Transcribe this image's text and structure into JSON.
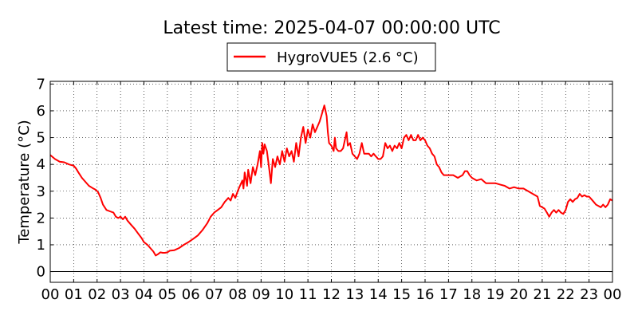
{
  "chart_data": {
    "type": "line",
    "title": "Latest time: 2025-04-07 00:00:00 UTC",
    "xlabel": "",
    "ylabel": "Temperature (°C)",
    "xlim": [
      0,
      24
    ],
    "ylim": [
      -0.4,
      7.1
    ],
    "x_ticks": [
      0,
      1,
      2,
      3,
      4,
      5,
      6,
      7,
      8,
      9,
      10,
      11,
      12,
      13,
      14,
      15,
      16,
      17,
      18,
      19,
      20,
      21,
      22,
      23,
      24
    ],
    "x_tick_labels": [
      "00",
      "01",
      "02",
      "03",
      "04",
      "05",
      "06",
      "07",
      "08",
      "09",
      "10",
      "11",
      "12",
      "13",
      "14",
      "15",
      "16",
      "17",
      "18",
      "19",
      "20",
      "21",
      "22",
      "23",
      "00"
    ],
    "y_ticks": [
      0,
      1,
      2,
      3,
      4,
      5,
      6,
      7
    ],
    "y_tick_labels": [
      "0",
      "1",
      "2",
      "3",
      "4",
      "5",
      "6",
      "7"
    ],
    "grid": true,
    "legend_position": "top-center",
    "series": [
      {
        "name": "HygroVUE5 (2.6 °C)",
        "color": "#ff0000",
        "points": [
          [
            0.0,
            4.35
          ],
          [
            0.2,
            4.2
          ],
          [
            0.4,
            4.1
          ],
          [
            0.6,
            4.08
          ],
          [
            0.8,
            4.0
          ],
          [
            1.0,
            3.95
          ],
          [
            1.1,
            3.85
          ],
          [
            1.2,
            3.7
          ],
          [
            1.35,
            3.5
          ],
          [
            1.5,
            3.35
          ],
          [
            1.65,
            3.2
          ],
          [
            1.8,
            3.12
          ],
          [
            1.95,
            3.05
          ],
          [
            2.05,
            2.95
          ],
          [
            2.15,
            2.75
          ],
          [
            2.25,
            2.5
          ],
          [
            2.4,
            2.3
          ],
          [
            2.55,
            2.25
          ],
          [
            2.7,
            2.2
          ],
          [
            2.8,
            2.05
          ],
          [
            2.9,
            2.0
          ],
          [
            3.0,
            2.05
          ],
          [
            3.1,
            1.95
          ],
          [
            3.2,
            2.05
          ],
          [
            3.3,
            1.9
          ],
          [
            3.45,
            1.75
          ],
          [
            3.6,
            1.6
          ],
          [
            3.75,
            1.42
          ],
          [
            3.9,
            1.25
          ],
          [
            4.0,
            1.1
          ],
          [
            4.15,
            1.0
          ],
          [
            4.3,
            0.85
          ],
          [
            4.4,
            0.75
          ],
          [
            4.5,
            0.6
          ],
          [
            4.6,
            0.65
          ],
          [
            4.7,
            0.72
          ],
          [
            4.8,
            0.7
          ],
          [
            4.9,
            0.7
          ],
          [
            5.0,
            0.72
          ],
          [
            5.1,
            0.78
          ],
          [
            5.3,
            0.8
          ],
          [
            5.5,
            0.88
          ],
          [
            5.7,
            1.0
          ],
          [
            5.9,
            1.1
          ],
          [
            6.1,
            1.22
          ],
          [
            6.3,
            1.35
          ],
          [
            6.5,
            1.55
          ],
          [
            6.7,
            1.8
          ],
          [
            6.85,
            2.05
          ],
          [
            7.0,
            2.2
          ],
          [
            7.15,
            2.3
          ],
          [
            7.3,
            2.4
          ],
          [
            7.45,
            2.6
          ],
          [
            7.6,
            2.75
          ],
          [
            7.7,
            2.65
          ],
          [
            7.8,
            2.9
          ],
          [
            7.9,
            2.75
          ],
          [
            8.0,
            3.0
          ],
          [
            8.1,
            3.2
          ],
          [
            8.2,
            3.4
          ],
          [
            8.25,
            3.1
          ],
          [
            8.3,
            3.7
          ],
          [
            8.4,
            3.2
          ],
          [
            8.45,
            3.8
          ],
          [
            8.55,
            3.3
          ],
          [
            8.65,
            3.9
          ],
          [
            8.75,
            3.6
          ],
          [
            8.85,
            4.0
          ],
          [
            8.95,
            4.5
          ],
          [
            9.0,
            3.9
          ],
          [
            9.05,
            4.8
          ],
          [
            9.1,
            4.4
          ],
          [
            9.15,
            4.75
          ],
          [
            9.25,
            4.5
          ],
          [
            9.35,
            3.8
          ],
          [
            9.42,
            3.3
          ],
          [
            9.5,
            4.2
          ],
          [
            9.6,
            3.9
          ],
          [
            9.7,
            4.3
          ],
          [
            9.8,
            4.0
          ],
          [
            9.9,
            4.5
          ],
          [
            10.0,
            4.1
          ],
          [
            10.1,
            4.6
          ],
          [
            10.2,
            4.3
          ],
          [
            10.3,
            4.5
          ],
          [
            10.4,
            4.1
          ],
          [
            10.5,
            4.8
          ],
          [
            10.6,
            4.3
          ],
          [
            10.7,
            5.0
          ],
          [
            10.8,
            5.4
          ],
          [
            10.9,
            4.8
          ],
          [
            11.0,
            5.3
          ],
          [
            11.1,
            5.0
          ],
          [
            11.2,
            5.5
          ],
          [
            11.3,
            5.2
          ],
          [
            11.4,
            5.4
          ],
          [
            11.5,
            5.6
          ],
          [
            11.6,
            5.9
          ],
          [
            11.7,
            6.2
          ],
          [
            11.75,
            6.0
          ],
          [
            11.8,
            5.8
          ],
          [
            11.85,
            5.2
          ],
          [
            11.9,
            4.8
          ],
          [
            12.0,
            4.7
          ],
          [
            12.1,
            4.5
          ],
          [
            12.15,
            5.0
          ],
          [
            12.2,
            4.6
          ],
          [
            12.3,
            4.5
          ],
          [
            12.4,
            4.5
          ],
          [
            12.5,
            4.6
          ],
          [
            12.6,
            5.0
          ],
          [
            12.65,
            5.2
          ],
          [
            12.7,
            4.7
          ],
          [
            12.8,
            4.8
          ],
          [
            12.9,
            4.4
          ],
          [
            13.0,
            4.3
          ],
          [
            13.1,
            4.2
          ],
          [
            13.2,
            4.4
          ],
          [
            13.3,
            4.8
          ],
          [
            13.4,
            4.4
          ],
          [
            13.5,
            4.4
          ],
          [
            13.6,
            4.4
          ],
          [
            13.7,
            4.3
          ],
          [
            13.8,
            4.4
          ],
          [
            13.9,
            4.3
          ],
          [
            14.0,
            4.2
          ],
          [
            14.1,
            4.2
          ],
          [
            14.2,
            4.3
          ],
          [
            14.3,
            4.8
          ],
          [
            14.4,
            4.6
          ],
          [
            14.5,
            4.7
          ],
          [
            14.6,
            4.5
          ],
          [
            14.7,
            4.7
          ],
          [
            14.8,
            4.6
          ],
          [
            14.9,
            4.8
          ],
          [
            15.0,
            4.6
          ],
          [
            15.1,
            5.0
          ],
          [
            15.2,
            5.1
          ],
          [
            15.3,
            4.9
          ],
          [
            15.4,
            5.1
          ],
          [
            15.5,
            4.9
          ],
          [
            15.6,
            4.9
          ],
          [
            15.7,
            5.1
          ],
          [
            15.8,
            4.9
          ],
          [
            15.9,
            5.0
          ],
          [
            16.0,
            4.9
          ],
          [
            16.1,
            4.7
          ],
          [
            16.2,
            4.6
          ],
          [
            16.3,
            4.4
          ],
          [
            16.4,
            4.3
          ],
          [
            16.5,
            4.0
          ],
          [
            16.6,
            3.9
          ],
          [
            16.7,
            3.7
          ],
          [
            16.8,
            3.6
          ],
          [
            17.0,
            3.6
          ],
          [
            17.2,
            3.6
          ],
          [
            17.4,
            3.5
          ],
          [
            17.5,
            3.55
          ],
          [
            17.6,
            3.6
          ],
          [
            17.7,
            3.75
          ],
          [
            17.8,
            3.75
          ],
          [
            17.9,
            3.6
          ],
          [
            18.0,
            3.5
          ],
          [
            18.2,
            3.4
          ],
          [
            18.4,
            3.45
          ],
          [
            18.6,
            3.3
          ],
          [
            18.8,
            3.3
          ],
          [
            19.0,
            3.3
          ],
          [
            19.2,
            3.25
          ],
          [
            19.4,
            3.2
          ],
          [
            19.6,
            3.1
          ],
          [
            19.8,
            3.15
          ],
          [
            20.0,
            3.1
          ],
          [
            20.2,
            3.1
          ],
          [
            20.4,
            3.0
          ],
          [
            20.6,
            2.9
          ],
          [
            20.8,
            2.8
          ],
          [
            20.9,
            2.45
          ],
          [
            21.0,
            2.4
          ],
          [
            21.1,
            2.35
          ],
          [
            21.2,
            2.2
          ],
          [
            21.3,
            2.05
          ],
          [
            21.4,
            2.2
          ],
          [
            21.5,
            2.3
          ],
          [
            21.6,
            2.2
          ],
          [
            21.7,
            2.3
          ],
          [
            21.8,
            2.2
          ],
          [
            21.9,
            2.15
          ],
          [
            22.0,
            2.3
          ],
          [
            22.1,
            2.6
          ],
          [
            22.2,
            2.7
          ],
          [
            22.3,
            2.6
          ],
          [
            22.4,
            2.7
          ],
          [
            22.5,
            2.75
          ],
          [
            22.6,
            2.9
          ],
          [
            22.7,
            2.8
          ],
          [
            22.8,
            2.85
          ],
          [
            22.9,
            2.8
          ],
          [
            23.0,
            2.8
          ],
          [
            23.1,
            2.7
          ],
          [
            23.2,
            2.6
          ],
          [
            23.3,
            2.5
          ],
          [
            23.4,
            2.45
          ],
          [
            23.5,
            2.4
          ],
          [
            23.6,
            2.5
          ],
          [
            23.7,
            2.4
          ],
          [
            23.8,
            2.5
          ],
          [
            23.9,
            2.7
          ],
          [
            24.0,
            2.65
          ]
        ]
      }
    ]
  }
}
